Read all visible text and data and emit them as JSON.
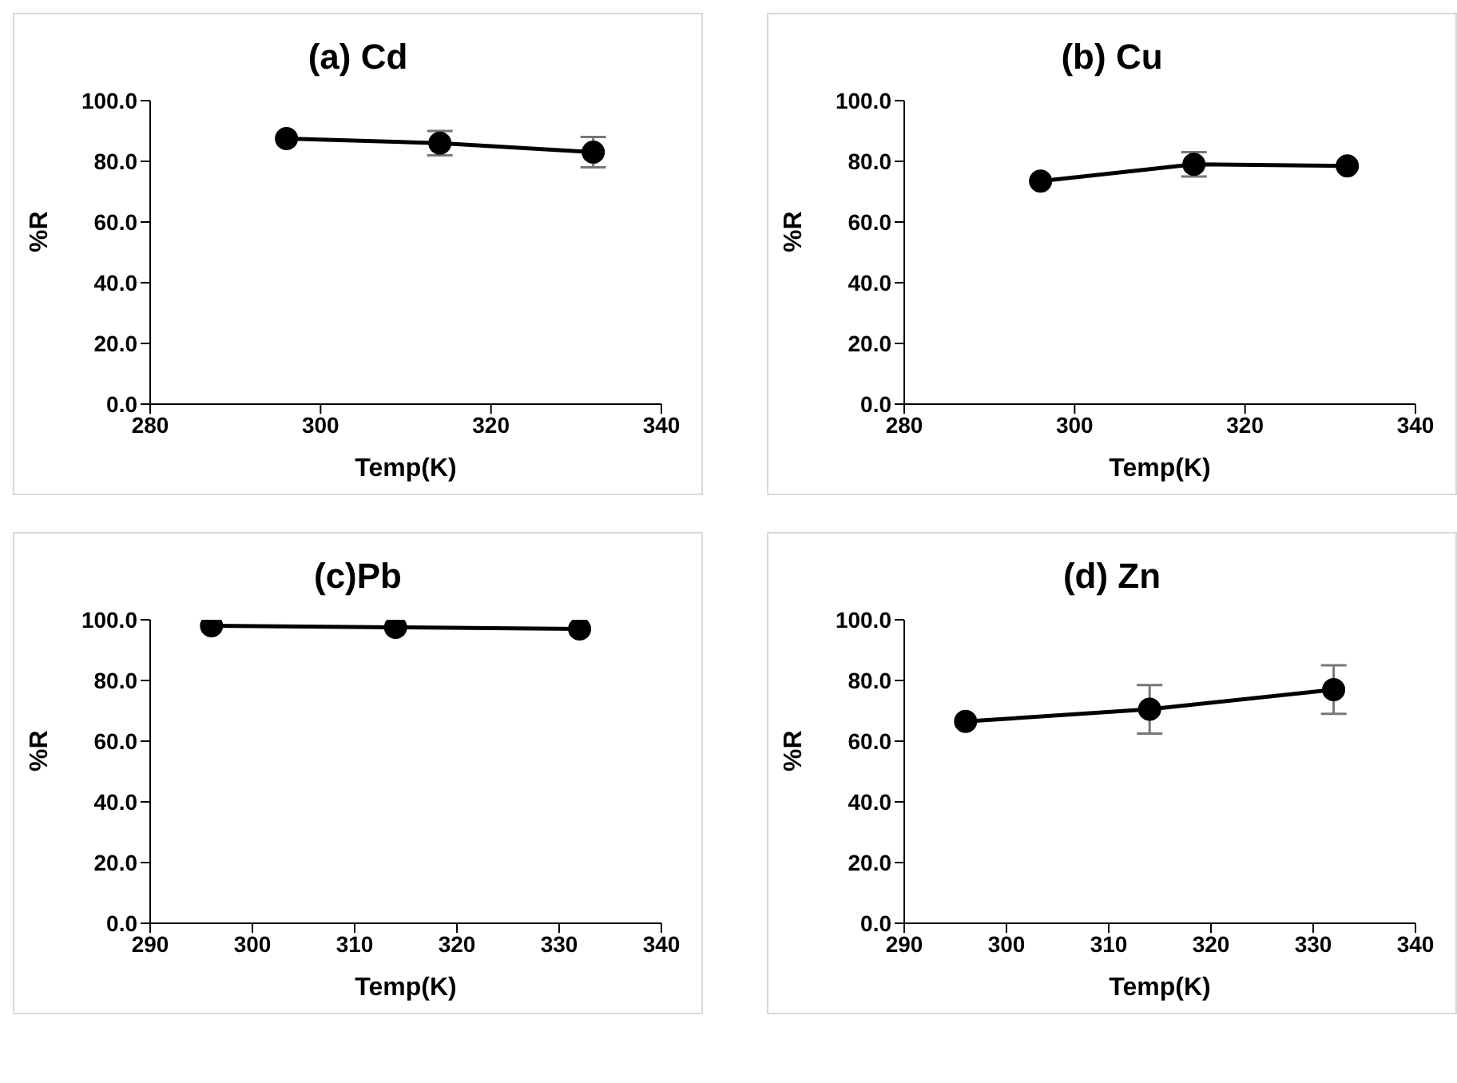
{
  "chart_data": [
    {
      "type": "line",
      "title": "(a) Cd",
      "xlabel": "Temp(K)",
      "ylabel": "%R",
      "x": [
        296,
        314,
        332
      ],
      "series": [
        {
          "color": "#000000",
          "values": [
            87.5,
            86,
            83
          ],
          "errors": [
            null,
            4,
            5
          ]
        }
      ],
      "xlim": [
        280,
        340
      ],
      "xticks": [
        280,
        300,
        320,
        340
      ],
      "ylim": [
        0,
        100
      ],
      "yticks": [
        {
          "value": 0,
          "label": "0.0"
        },
        {
          "value": 20,
          "label": "20.0"
        },
        {
          "value": 40,
          "label": "40.0"
        },
        {
          "value": 60,
          "label": "60.0"
        },
        {
          "value": 80,
          "label": "80.0"
        },
        {
          "value": 100,
          "label": "100.0"
        }
      ],
      "grid": false,
      "legend": false,
      "marker": "circle",
      "line_style": "solid"
    },
    {
      "type": "line",
      "title": "(b) Cu",
      "xlabel": "Temp(K)",
      "ylabel": "%R",
      "x": [
        296,
        314,
        332
      ],
      "series": [
        {
          "color": "#000000",
          "values": [
            73.5,
            79,
            78.5
          ],
          "errors": [
            null,
            4,
            null
          ]
        }
      ],
      "xlim": [
        280,
        340
      ],
      "xticks": [
        280,
        300,
        320,
        340
      ],
      "ylim": [
        0,
        100
      ],
      "yticks": [
        {
          "value": 0,
          "label": "0.0"
        },
        {
          "value": 20,
          "label": "20.0"
        },
        {
          "value": 40,
          "label": "40.0"
        },
        {
          "value": 60,
          "label": "60.0"
        },
        {
          "value": 80,
          "label": "80.0"
        },
        {
          "value": 100,
          "label": "100.0"
        }
      ],
      "grid": false,
      "legend": false,
      "marker": "circle",
      "line_style": "solid"
    },
    {
      "type": "line",
      "title": "(c)Pb",
      "xlabel": "Temp(K)",
      "ylabel": "%R",
      "x": [
        296,
        314,
        332
      ],
      "series": [
        {
          "color": "#000000",
          "values": [
            98,
            97.5,
            97
          ]
        }
      ],
      "xlim": [
        290,
        340
      ],
      "xticks": [
        290,
        300,
        310,
        320,
        330,
        340
      ],
      "ylim": [
        0,
        100
      ],
      "yticks": [
        {
          "value": 0,
          "label": "0.0"
        },
        {
          "value": 20,
          "label": "20.0"
        },
        {
          "value": 40,
          "label": "40.0"
        },
        {
          "value": 60,
          "label": "60.0"
        },
        {
          "value": 80,
          "label": "80.0"
        },
        {
          "value": 100,
          "label": "100.0"
        }
      ],
      "grid": false,
      "legend": false,
      "marker": "circle",
      "line_style": "solid"
    },
    {
      "type": "line",
      "title": "(d) Zn",
      "xlabel": "Temp(K)",
      "ylabel": "%R",
      "x": [
        296,
        314,
        332
      ],
      "series": [
        {
          "color": "#000000",
          "values": [
            66.5,
            70.5,
            77
          ],
          "errors": [
            null,
            8,
            8
          ]
        }
      ],
      "xlim": [
        290,
        340
      ],
      "xticks": [
        290,
        300,
        310,
        320,
        330,
        340
      ],
      "ylim": [
        0,
        100
      ],
      "yticks": [
        {
          "value": 0,
          "label": "0.0"
        },
        {
          "value": 20,
          "label": "20.0"
        },
        {
          "value": 40,
          "label": "40.0"
        },
        {
          "value": 60,
          "label": "60.0"
        },
        {
          "value": 80,
          "label": "80.0"
        },
        {
          "value": 100,
          "label": "100.0"
        }
      ],
      "grid": false,
      "legend": false,
      "marker": "circle",
      "line_style": "solid"
    }
  ]
}
